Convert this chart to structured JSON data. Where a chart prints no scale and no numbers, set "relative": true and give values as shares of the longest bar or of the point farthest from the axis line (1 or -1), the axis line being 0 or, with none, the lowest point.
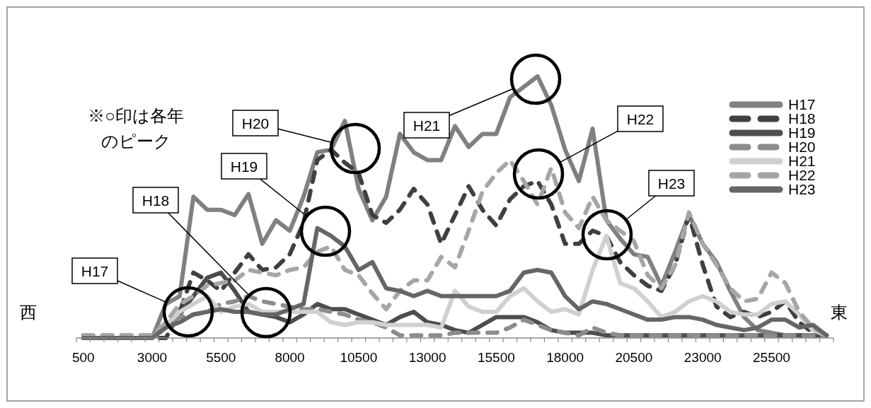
{
  "chart_data": {
    "type": "line",
    "relative": true,
    "legend": "top right",
    "categories": [
      "500",
      null,
      null,
      null,
      null,
      "3000",
      null,
      null,
      null,
      null,
      "5500",
      null,
      null,
      null,
      null,
      "8000",
      null,
      null,
      null,
      null,
      "10500",
      null,
      null,
      null,
      null,
      "13000",
      null,
      null,
      null,
      null,
      "15500",
      null,
      null,
      null,
      null,
      "18000",
      null,
      null,
      null,
      null,
      "20500",
      null,
      null,
      null,
      null,
      "23000",
      null,
      null,
      null,
      null,
      "25500",
      null,
      null,
      null,
      null
    ],
    "series": [
      {
        "name": "H17",
        "color": "#808080",
        "values": [
          0,
          0,
          0,
          0,
          0,
          0,
          0.13,
          0.16,
          0.54,
          0.49,
          0.49,
          0.47,
          0.55,
          0.36,
          0.45,
          0.41,
          0.54,
          0.71,
          0.72,
          0.83,
          0.57,
          0.45,
          0.54,
          0.78,
          0.71,
          0.68,
          0.68,
          0.81,
          0.73,
          0.78,
          0.78,
          0.92,
          0.96,
          1,
          0.89,
          0.72,
          0.6,
          0.8,
          0.45,
          0.38,
          0.32,
          0.31,
          0.2,
          0.33,
          0.47,
          0.36,
          0.29,
          0.18,
          0.08,
          0.03,
          0.02,
          0.01,
          0.01,
          0.01,
          0.01
        ]
      },
      {
        "name": "H18",
        "color": "#404040",
        "line_style": "dashed",
        "values": [
          0,
          0,
          0,
          0,
          0,
          0,
          0,
          0.1,
          0.25,
          0.22,
          0.18,
          0.25,
          0.32,
          0.26,
          0.27,
          0.32,
          0.44,
          0.68,
          0.72,
          0.67,
          0.63,
          0.47,
          0.44,
          0.49,
          0.57,
          0.51,
          0.36,
          0.47,
          0.58,
          0.49,
          0.43,
          0.53,
          0.58,
          0.6,
          0.51,
          0.36,
          0.36,
          0.41,
          0.39,
          0.29,
          0.24,
          0.2,
          0.18,
          0.28,
          0.47,
          0.28,
          0.12,
          0.08,
          0.1,
          0.08,
          0.1,
          0.14,
          0.06,
          0.02,
          0.01
        ]
      },
      {
        "name": "H19",
        "color": "#4d4d4d",
        "values": [
          0,
          0,
          0,
          0,
          0,
          0,
          0.04,
          0.09,
          0.16,
          0.23,
          0.25,
          0.18,
          0.1,
          0.09,
          0.08,
          0.06,
          0.09,
          0.13,
          0.11,
          0.11,
          0.09,
          0.07,
          0.05,
          0.08,
          0.1,
          0.06,
          0.05,
          0.03,
          0.02,
          0.05,
          0.08,
          0.08,
          0.08,
          0.06,
          0.03,
          0.02,
          0.02,
          0.02,
          0.01,
          0.01,
          0.01,
          0.01,
          0.01,
          0.01,
          0.01,
          0.01,
          0.01,
          0.01,
          0.01,
          0.01,
          0.01,
          0.01,
          0.01,
          0.01,
          0.01
        ]
      },
      {
        "name": "H20",
        "color": "#8c8c8c",
        "line_style": "dashed",
        "values": [
          0.01,
          0.01,
          0.01,
          0.01,
          0.01,
          0.01,
          0.05,
          0.08,
          0.09,
          0.1,
          0.13,
          0.14,
          0.16,
          0.14,
          0.13,
          0.12,
          0.11,
          0.11,
          0.1,
          0.09,
          0.07,
          0.06,
          0.04,
          0.01,
          0.01,
          0.01,
          0.01,
          0.02,
          0.02,
          0.02,
          0.02,
          0.04,
          0.07,
          0.05,
          0.03,
          0.02,
          0.01,
          0.04,
          0.02,
          0.01,
          0.01,
          0.01,
          0.01,
          0.01,
          0.01,
          0.01,
          0.01,
          0.01,
          0.01,
          0.01,
          0.01,
          0.01,
          0.01,
          0.01,
          0.01
        ]
      },
      {
        "name": "H21",
        "color": "#d0d0d0",
        "values": [
          0,
          0,
          0,
          0,
          0,
          0,
          0.05,
          0.1,
          0.13,
          0.16,
          0.1,
          0.12,
          0.13,
          0.1,
          0.1,
          0.1,
          0.1,
          0.1,
          0.06,
          0.05,
          0.06,
          0.06,
          0.05,
          0.05,
          0.05,
          0.05,
          0.04,
          0.18,
          0.12,
          0.1,
          0.1,
          0.16,
          0.19,
          0.14,
          0.1,
          0.11,
          0.09,
          0.26,
          0.39,
          0.21,
          0.19,
          0.14,
          0.08,
          0.1,
          0.14,
          0.16,
          0.14,
          0.1,
          0.09,
          0.09,
          0.13,
          0.14,
          0.09,
          0.03,
          0.01
        ]
      },
      {
        "name": "H22",
        "color": "#a6a6a6",
        "line_style": "dashed",
        "values": [
          0.01,
          0.01,
          0.01,
          0.01,
          0.01,
          0.01,
          0.06,
          0.13,
          0.16,
          0.2,
          0.21,
          0.22,
          0.26,
          0.25,
          0.24,
          0.26,
          0.27,
          0.33,
          0.35,
          0.26,
          0.24,
          0.17,
          0.11,
          0.18,
          0.22,
          0.22,
          0.31,
          0.27,
          0.41,
          0.56,
          0.63,
          0.68,
          0.6,
          0.51,
          0.65,
          0.48,
          0.42,
          0.54,
          0.45,
          0.41,
          0.37,
          0.24,
          0.19,
          0.28,
          0.48,
          0.36,
          0.28,
          0.19,
          0.14,
          0.15,
          0.25,
          0.21,
          0.1,
          0.04,
          0.01
        ]
      },
      {
        "name": "H23",
        "color": "#666666",
        "values": [
          0,
          0,
          0,
          0,
          0,
          0,
          0.04,
          0.06,
          0.09,
          0.1,
          0.11,
          0.1,
          0.1,
          0.09,
          0.09,
          0.11,
          0.13,
          0.42,
          0.39,
          0.35,
          0.26,
          0.29,
          0.19,
          0.18,
          0.16,
          0.18,
          0.16,
          0.16,
          0.16,
          0.16,
          0.16,
          0.18,
          0.25,
          0.26,
          0.25,
          0.16,
          0.11,
          0.14,
          0.13,
          0.11,
          0.09,
          0.07,
          0.07,
          0.08,
          0.08,
          0.07,
          0.05,
          0.04,
          0.03,
          0.04,
          0.07,
          0.07,
          0.04,
          0.05,
          0.01
        ]
      }
    ],
    "annotations": [
      "※○印は各年のピーク",
      "西",
      "東",
      "H17",
      "H18",
      "H19",
      "H20",
      "H21",
      "H22",
      "H23"
    ]
  }
}
